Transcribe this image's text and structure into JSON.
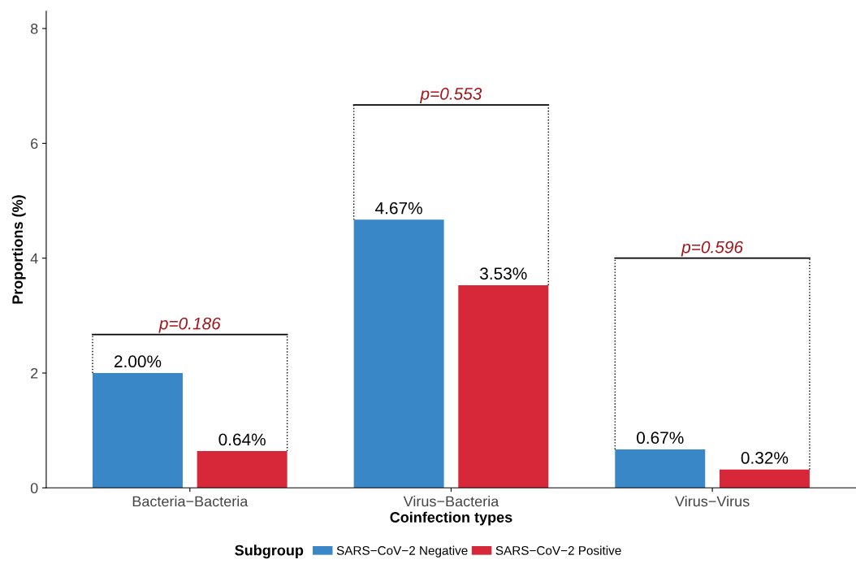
{
  "chart_data": {
    "type": "bar",
    "xlabel": "Coinfection types",
    "ylabel": "Proportions (%)",
    "legend_title": "Subgroup",
    "legend": "bottom",
    "grid": false,
    "categories": [
      "Bacteria−Bacteria",
      "Virus−Bacteria",
      "Virus−Virus"
    ],
    "ylim": [
      0,
      8.3
    ],
    "yticks": [
      0,
      2,
      4,
      6,
      8
    ],
    "series": [
      {
        "name": "SARS−CoV−2 Negative",
        "color": "#3a87c8",
        "values": [
          2.0,
          4.67,
          0.67
        ],
        "value_labels": [
          "2.00%",
          "4.67%",
          "0.67%"
        ]
      },
      {
        "name": "SARS−CoV−2 Positive",
        "color": "#d62839",
        "values": [
          0.64,
          3.53,
          0.32
        ],
        "value_labels": [
          "0.64%",
          "3.53%",
          "0.32%"
        ]
      }
    ],
    "annotations": [
      "p=0.186",
      "p=0.553",
      "p=0.596"
    ]
  }
}
